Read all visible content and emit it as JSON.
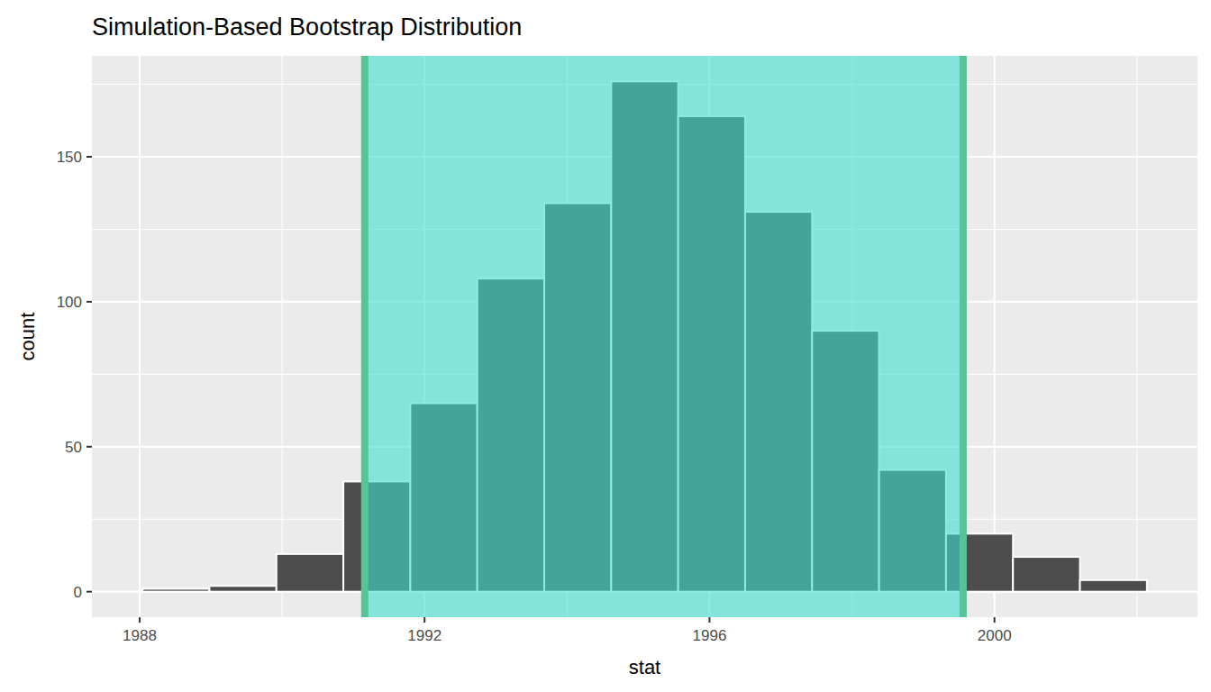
{
  "chart_data": {
    "type": "histogram",
    "title": "Simulation-Based Bootstrap Distribution",
    "x_label": "stat",
    "y_label": "count",
    "bins": [
      1988.04,
      1988.98,
      1989.92,
      1990.86,
      1991.8,
      1992.74,
      1993.68,
      1994.62,
      1995.56,
      1996.5,
      1997.44,
      1998.38,
      1999.32,
      2000.26,
      2001.2,
      2002.14
    ],
    "values": [
      1,
      2,
      13,
      38,
      65,
      108,
      134,
      176,
      164,
      131,
      90,
      42,
      20,
      12,
      4
    ],
    "color": "#4d4d4d",
    "interval": [
      1991.16,
      1999.56
    ],
    "xlim": [
      1987.33,
      2002.85
    ],
    "ylim": [
      -8.8,
      184.8
    ],
    "xticks": [
      1988,
      1992,
      1996,
      2000
    ],
    "yticks": [
      0,
      50,
      100,
      150
    ],
    "grid": true
  }
}
